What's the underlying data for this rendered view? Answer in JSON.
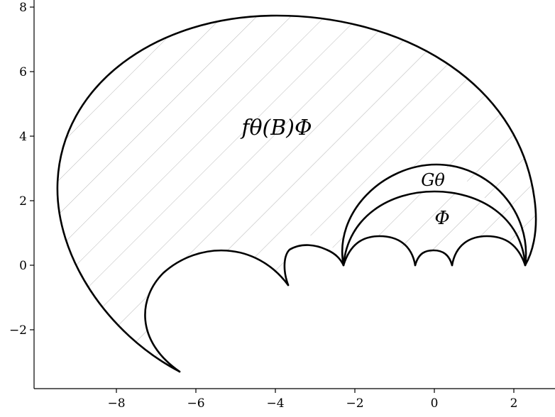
{
  "chart_data": {
    "type": "diagram",
    "xlim": [
      -9.8,
      2.6
    ],
    "ylim": [
      -3.9,
      8.1
    ],
    "xticks": [
      -8,
      -6,
      -4,
      -2,
      0,
      2
    ],
    "yticks": [
      -2,
      0,
      2,
      4,
      6,
      8
    ],
    "xtick_labels": [
      "−8",
      "−6",
      "−4",
      "−2",
      "0",
      "2"
    ],
    "ytick_labels": [
      "−2",
      "0",
      "2",
      "4",
      "6",
      "8"
    ],
    "grid": false,
    "labels": [
      {
        "text": "fθ(B)Φ",
        "x": -3.6,
        "y": 4.3
      },
      {
        "text": "Gθ",
        "x": -0.1,
        "y": 2.55
      },
      {
        "text": "Φ",
        "x": 0.2,
        "y": 1.45
      }
    ],
    "arcs": [
      {
        "name": "outer-boundary",
        "center": [
          -3.4,
          2.5
        ],
        "radius": 5.2,
        "from": [
          -6.3,
          -3.3
        ],
        "to": [
          2.25,
          0.0
        ]
      },
      {
        "name": "G-theta-arc",
        "center": [
          0.0,
          -2.0
        ],
        "radius": 5.0,
        "from": [
          -2.25,
          0.0
        ],
        "to": [
          2.25,
          0.0
        ]
      },
      {
        "name": "Phi-arc",
        "center": [
          0.0,
          -3.0
        ],
        "radius": 5.2,
        "from": [
          -2.25,
          0.0
        ],
        "to": [
          2.25,
          0.0
        ]
      },
      {
        "name": "bump-1",
        "center": [
          -1.35,
          -0.9
        ],
        "radius": 1.3,
        "from": [
          -2.25,
          0.0
        ],
        "to": [
          -0.45,
          0.0
        ]
      },
      {
        "name": "bump-2",
        "center": [
          0.0,
          -0.2
        ],
        "radius": 0.6,
        "from": [
          -0.45,
          0.0
        ],
        "to": [
          0.45,
          0.0
        ]
      },
      {
        "name": "bump-3",
        "center": [
          1.35,
          -0.9
        ],
        "radius": 1.3,
        "from": [
          0.45,
          0.0
        ],
        "to": [
          2.25,
          0.0
        ]
      },
      {
        "name": "bump-4",
        "center": [
          -3.0,
          0.0
        ],
        "radius": 0.75,
        "from": [
          -3.6,
          -0.6
        ],
        "to": [
          -2.25,
          0.0
        ]
      },
      {
        "name": "inner-big-arc",
        "center": [
          -5.3,
          -1.5
        ],
        "radius": 2.0,
        "from": [
          -6.3,
          -3.3
        ],
        "to": [
          -3.6,
          -0.6
        ]
      }
    ]
  }
}
